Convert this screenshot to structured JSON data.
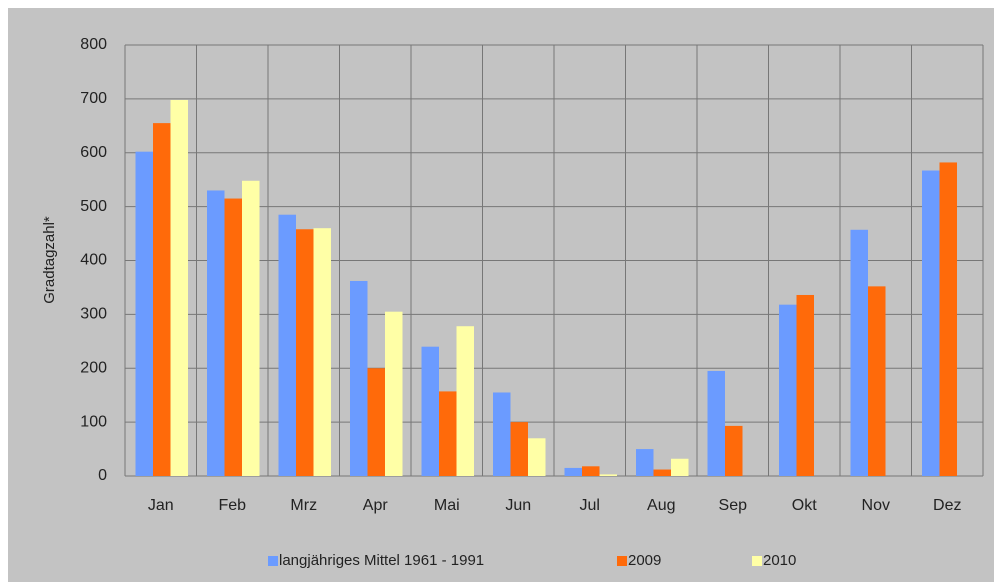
{
  "chart_data": {
    "type": "bar",
    "categories": [
      "Jan",
      "Feb",
      "Mrz",
      "Apr",
      "Mai",
      "Jun",
      "Jul",
      "Aug",
      "Sep",
      "Okt",
      "Nov",
      "Dez"
    ],
    "series": [
      {
        "name": "langjähriges Mittel 1961 - 1991",
        "color": "#6b9bff",
        "values": [
          602,
          530,
          485,
          362,
          240,
          155,
          15,
          50,
          195,
          318,
          457,
          567
        ]
      },
      {
        "name": "2009",
        "color": "#ff6a0a",
        "values": [
          655,
          515,
          458,
          200,
          157,
          100,
          18,
          12,
          93,
          336,
          352,
          582
        ]
      },
      {
        "name": "2010",
        "color": "#ffffa6",
        "values": [
          698,
          548,
          460,
          305,
          278,
          70,
          3,
          32,
          null,
          null,
          null,
          null
        ]
      }
    ],
    "y_label": "Gradtagzahl*",
    "ylim": [
      0,
      800
    ],
    "yticks": [
      0,
      100,
      200,
      300,
      400,
      500,
      600,
      700,
      800
    ],
    "grid": true,
    "legend": "bottom"
  }
}
